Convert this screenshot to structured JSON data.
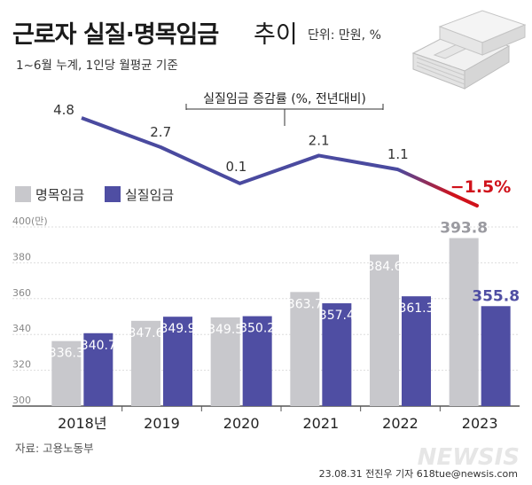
{
  "title_bold": "근로자 실질·명목임금",
  "title_light": "추이",
  "unit_text": "단위: 만원, %",
  "subtitle": "1~6월 누계, 1인당 월평균 기준",
  "annotation": "실질임금 증감률 (%, 전년대비)",
  "legend": [
    "명목임금",
    "실질임금"
  ],
  "source": "자료: 고용노동부",
  "credit": "23.08.31 전진우 기자 618tue@newsis.com",
  "logo_text": "NEWSIS",
  "colors": {
    "nominal": "#c8c8cc",
    "real": "#4f4ea3",
    "line": "#4a4a9f",
    "negative": "#d0121b",
    "axis": "#555555",
    "grid": "#dddddd"
  },
  "icon": "money-stack-icon",
  "chart_data": [
    {
      "type": "line",
      "title": "실질임금 증감률 (%, 전년대비)",
      "x": [
        "2018",
        "2019",
        "2020",
        "2021",
        "2022",
        "2023"
      ],
      "values": [
        4.8,
        2.7,
        0.1,
        2.1,
        1.1,
        -1.5
      ],
      "labels": [
        "4.8",
        "2.7",
        "0.1",
        "2.1",
        "1.1",
        "−1.5%"
      ]
    },
    {
      "type": "bar",
      "categories": [
        "2018년",
        "2019",
        "2020",
        "2021",
        "2022",
        "2023"
      ],
      "series": [
        {
          "name": "명목임금",
          "values": [
            336.3,
            347.6,
            349.5,
            363.7,
            384.6,
            393.8
          ]
        },
        {
          "name": "실질임금",
          "values": [
            340.7,
            349.9,
            350.2,
            357.4,
            361.3,
            355.8
          ]
        }
      ],
      "ylim": [
        300,
        400
      ],
      "yticks": [
        "300",
        "320",
        "340",
        "360",
        "380",
        "400(만)"
      ]
    }
  ]
}
